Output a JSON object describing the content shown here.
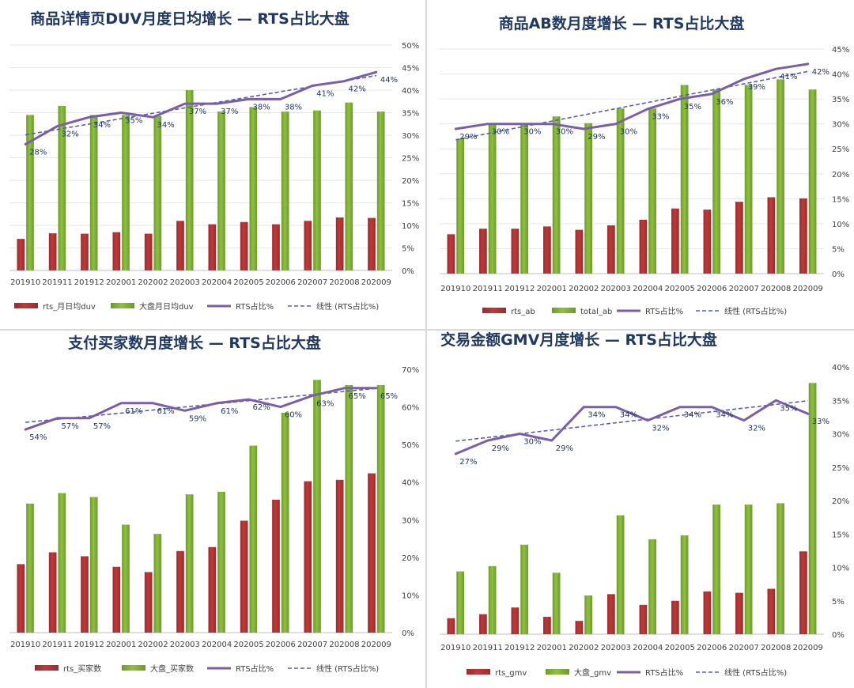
{
  "colors": {
    "bar_rts": "#c0393b",
    "bar_rts_dark": "#9e2a2b",
    "bar_total": "#8fc13e",
    "bar_total_dark": "#6c9a2b",
    "line": "#7a5ea8",
    "trend": "#5b5fa8",
    "title": "#1f3864",
    "label": "#1f3864",
    "axis": "#404040",
    "grid": "#e6e6e6"
  },
  "chart_data": [
    {
      "type": "bar",
      "title": "商品详情页DUV月度日均增长 — RTS占比大盘",
      "categories": [
        "201910",
        "201911",
        "201912",
        "202001",
        "202002",
        "202003",
        "202004",
        "202005",
        "202006",
        "202007",
        "202008",
        "202009"
      ],
      "series": [
        {
          "name": "rts_月日均duv",
          "values": [
            14,
            16.5,
            16.3,
            17,
            16.3,
            22,
            20.5,
            21.5,
            20.5,
            22,
            23.5,
            23.3
          ]
        },
        {
          "name": "大盘月日均duv",
          "values": [
            69,
            73,
            69,
            69,
            68.5,
            80,
            70.5,
            72.5,
            70.5,
            71,
            74.5,
            70.5
          ]
        }
      ],
      "ratio": {
        "name": "RTS占比%",
        "values": [
          28,
          32,
          34,
          35,
          34,
          37,
          37,
          38,
          38,
          41,
          42,
          44
        ],
        "labels": [
          "28%",
          "32%",
          "34%",
          "35%",
          "34%",
          "37%",
          "37%",
          "38%",
          "38%",
          "41%",
          "42%",
          "44%"
        ]
      },
      "trend_label": "线性 (RTS占比%)",
      "bar_max": 100,
      "right_ticks": [
        "0%",
        "5%",
        "10%",
        "15%",
        "20%",
        "25%",
        "30%",
        "35%",
        "40%",
        "45%",
        "50%"
      ],
      "right_max": 50,
      "grid": true,
      "legend_position": "bottom"
    },
    {
      "type": "bar",
      "title": "商品AB数月度增长 — RTS占比大盘",
      "categories": [
        "201910",
        "201911",
        "201912",
        "202001",
        "202002",
        "202003",
        "202004",
        "202005",
        "202006",
        "202007",
        "202008",
        "202009"
      ],
      "series": [
        {
          "name": "rts_ab",
          "values": [
            17.5,
            20,
            20,
            21,
            19.5,
            21.5,
            24,
            29,
            28.5,
            32,
            34,
            33.5
          ]
        },
        {
          "name": "total_ab",
          "values": [
            60,
            66.5,
            67,
            70,
            67,
            73.5,
            73.5,
            84,
            82,
            84,
            86.5,
            82
          ]
        }
      ],
      "ratio": {
        "name": "RTS占比%",
        "values": [
          29,
          30,
          30,
          30,
          29,
          30,
          33,
          35,
          36,
          39,
          41,
          42
        ],
        "labels": [
          "29%",
          "30%",
          "30%",
          "30%",
          "29%",
          "30%",
          "33%",
          "35%",
          "36%",
          "39%",
          "41%",
          "42%"
        ]
      },
      "trend_label": "线性 (RTS占比%)",
      "bar_max": 100,
      "right_ticks": [
        "0%",
        "5%",
        "10%",
        "15%",
        "20%",
        "25%",
        "30%",
        "35%",
        "40%",
        "45%"
      ],
      "right_max": 45,
      "grid": true,
      "legend_position": "bottom"
    },
    {
      "type": "bar",
      "title": "支付买家数月度增长 — RTS占比大盘",
      "categories": [
        "201910",
        "201911",
        "201912",
        "202001",
        "202002",
        "202003",
        "202004",
        "202005",
        "202006",
        "202007",
        "202008",
        "202009"
      ],
      "series": [
        {
          "name": "rts_买家数",
          "values": [
            26,
            30.5,
            29,
            25,
            23,
            31,
            32.5,
            42.5,
            50.5,
            57.5,
            58,
            60.5
          ]
        },
        {
          "name": "大盘_买家数",
          "values": [
            49,
            53,
            51.5,
            41,
            37.5,
            52.5,
            53.5,
            71,
            83.5,
            96,
            94,
            94
          ]
        }
      ],
      "ratio": {
        "name": "RTS占比%",
        "values": [
          54,
          57,
          57,
          61,
          61,
          59,
          61,
          62,
          60,
          63,
          65,
          65
        ],
        "labels": [
          "54%",
          "57%",
          "57%",
          "61%",
          "61%",
          "59%",
          "61%",
          "62%",
          "60%",
          "63%",
          "65%",
          "65%"
        ]
      },
      "trend_label": "线性 (RTS占比%)",
      "bar_max": 100,
      "right_ticks": [
        "0%",
        "10%",
        "20%",
        "30%",
        "40%",
        "50%",
        "60%",
        "70%"
      ],
      "right_max": 70,
      "grid": false,
      "legend_position": "bottom"
    },
    {
      "type": "bar",
      "title": "交易金额GMV月度增长 — RTS占比大盘",
      "categories": [
        "201910",
        "201911",
        "201912",
        "202001",
        "202002",
        "202003",
        "202004",
        "202005",
        "202006",
        "202007",
        "202008",
        "202009"
      ],
      "series": [
        {
          "name": "rts_gmv",
          "values": [
            6,
            7.5,
            10,
            6.5,
            5,
            15,
            11,
            12.5,
            16,
            15.5,
            17,
            31
          ]
        },
        {
          "name": "大盘_gmv",
          "values": [
            23.5,
            25.5,
            33.5,
            23,
            14.5,
            44.5,
            35.5,
            37,
            48.5,
            48.5,
            49,
            94
          ]
        }
      ],
      "ratio": {
        "name": "RTS占比%",
        "values": [
          27,
          29,
          30,
          29,
          34,
          34,
          32,
          34,
          34,
          32,
          35,
          33
        ],
        "labels": [
          "27%",
          "29%",
          "30%",
          "29%",
          "34%",
          "34%",
          "32%",
          "34%",
          "34%",
          "32%",
          "35%",
          "33%"
        ]
      },
      "trend_label": "线性 (RTS占比%)",
      "bar_max": 100,
      "right_ticks": [
        "0%",
        "5%",
        "10%",
        "15%",
        "20%",
        "25%",
        "30%",
        "35%",
        "40%"
      ],
      "right_max": 40,
      "grid": false,
      "legend_position": "bottom"
    }
  ]
}
